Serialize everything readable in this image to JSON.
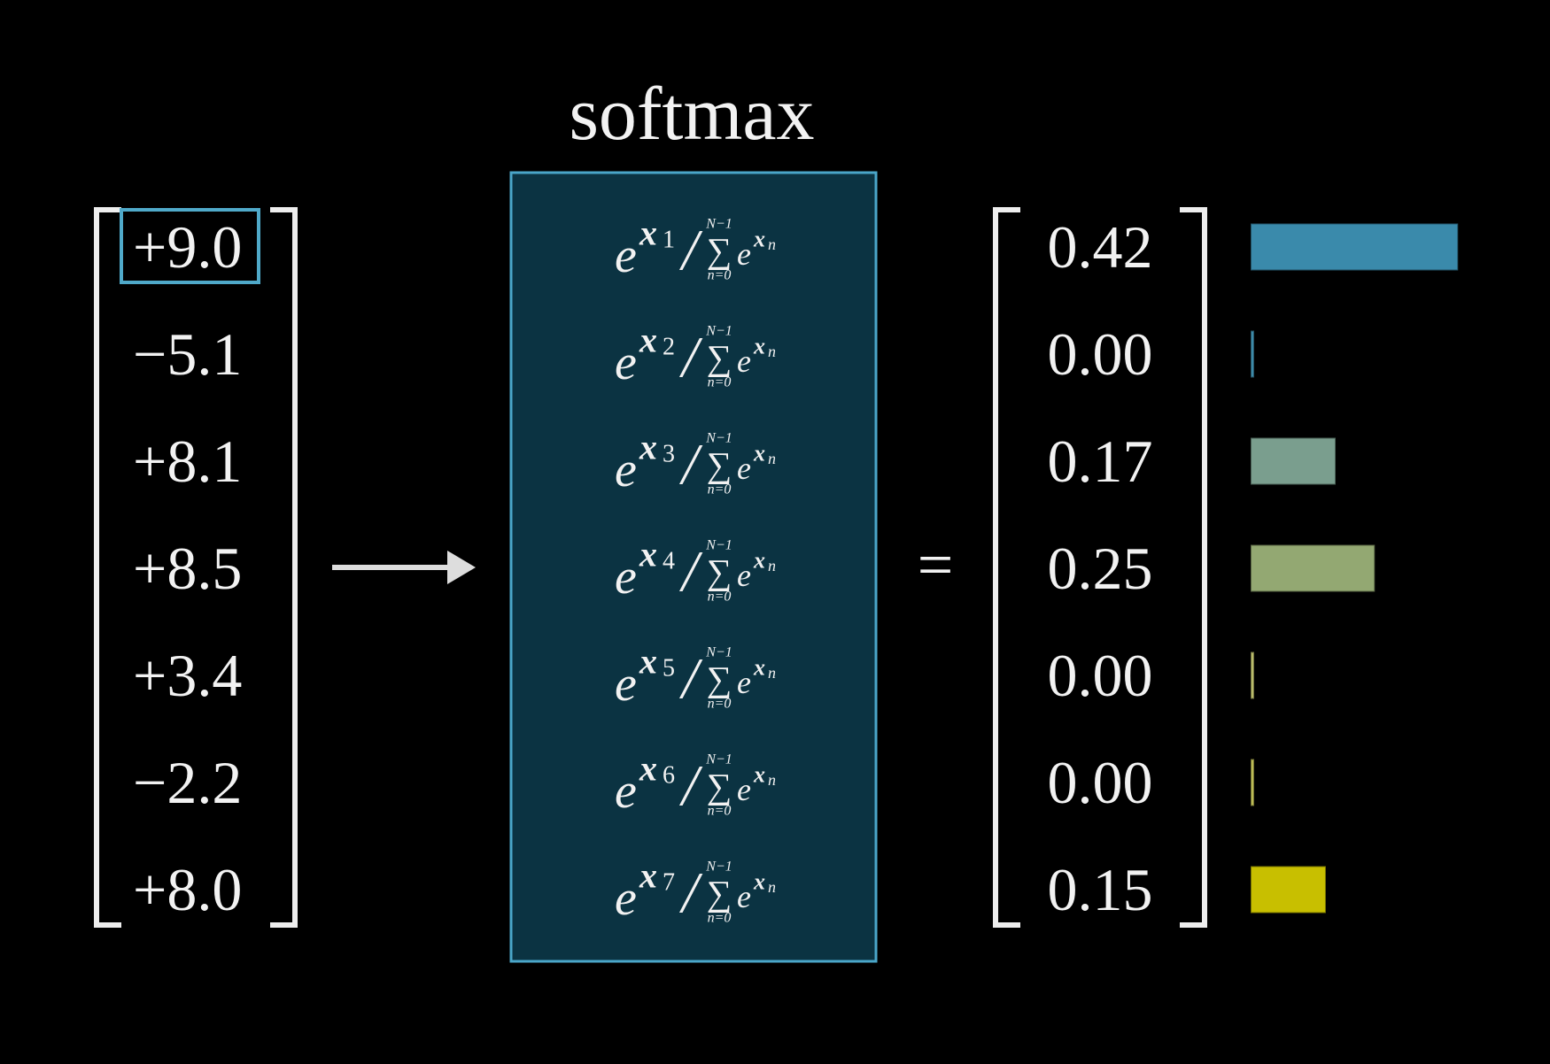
{
  "title": "softmax",
  "inputs": [
    "+9.0",
    "−5.1",
    "+8.1",
    "+8.5",
    "+3.4",
    "−2.2",
    "+8.0"
  ],
  "formula": {
    "base": "e",
    "var": "x",
    "indices": [
      "1",
      "2",
      "3",
      "4",
      "5",
      "6",
      "7"
    ],
    "divide": "/",
    "sum_symbol": "∑",
    "upper": "N−1",
    "lower": "n=0",
    "sum_index": "n"
  },
  "equals": "=",
  "outputs": [
    {
      "value": 0.42,
      "label": "0.42",
      "color": "#3a8aab"
    },
    {
      "value": 0,
      "label": "0.00",
      "color": "#3d8aa8"
    },
    {
      "value": 0.17,
      "label": "0.17",
      "color": "#7a9e8e"
    },
    {
      "value": 0.25,
      "label": "0.25",
      "color": "#93a872"
    },
    {
      "value": 0,
      "label": "0.00",
      "color": "#b9bb6a"
    },
    {
      "value": 0,
      "label": "0.00",
      "color": "#bcbb55"
    },
    {
      "value": 0.15,
      "label": "0.15",
      "color": "#c8bf00"
    }
  ]
}
